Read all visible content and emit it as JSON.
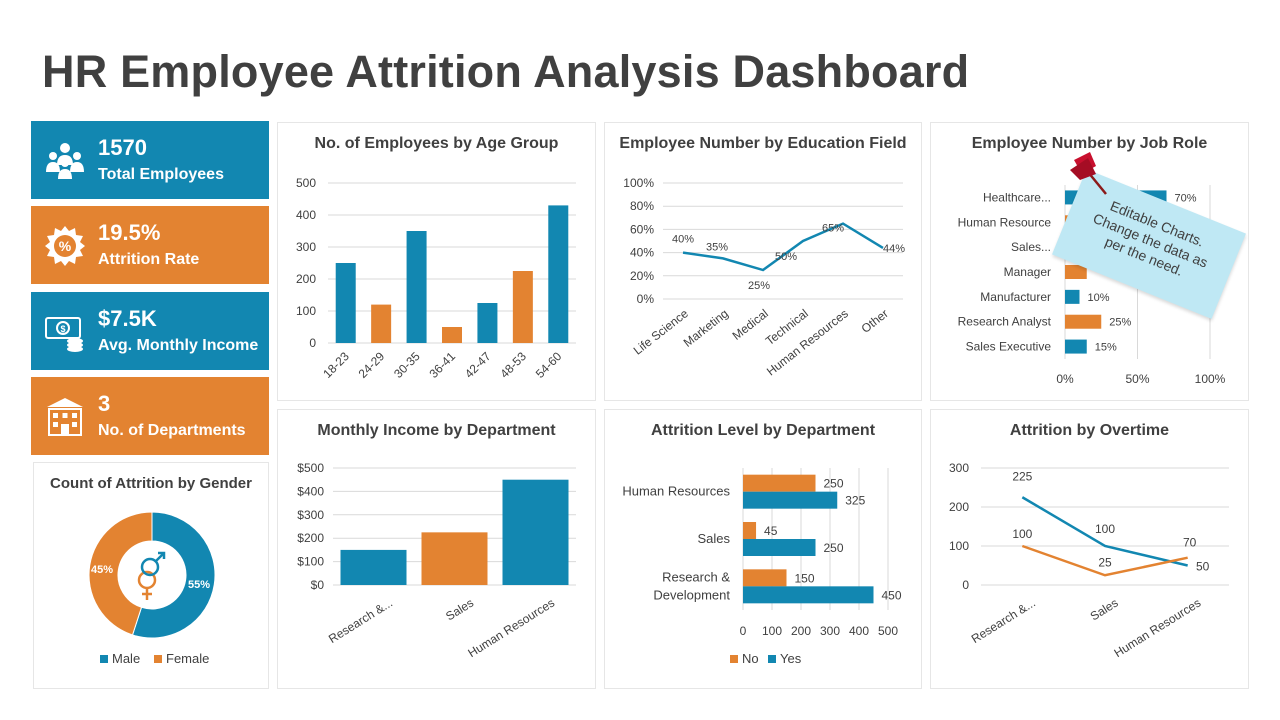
{
  "title": "HR Employee Attrition Analysis Dashboard",
  "colors": {
    "blue": "#1287b1",
    "orange": "#e38331",
    "text": "#404040",
    "grid": "#d9d9d9"
  },
  "kpis": [
    {
      "value": "1570",
      "label": "Total Employees",
      "icon": "people-icon"
    },
    {
      "value": "19.5%",
      "label": "Attrition Rate",
      "icon": "percent-badge-icon"
    },
    {
      "value": "$7.5K",
      "label": "Avg. Monthly Income",
      "icon": "money-icon"
    },
    {
      "value": "3",
      "label": "No. of Departments",
      "icon": "building-icon"
    }
  ],
  "note": {
    "line1": "Editable Charts.",
    "line2": "Change the data as",
    "line3": "per the need."
  },
  "chart_data": [
    {
      "id": "age",
      "type": "bar",
      "title": "No. of Employees by Age Group",
      "categories": [
        "18-23",
        "24-29",
        "30-35",
        "36-41",
        "42-47",
        "48-53",
        "54-60"
      ],
      "values": [
        250,
        120,
        350,
        50,
        125,
        225,
        430
      ],
      "colors": [
        "blue",
        "orange",
        "blue",
        "orange",
        "blue",
        "orange",
        "blue"
      ],
      "yticks": [
        "0",
        "100",
        "200",
        "300",
        "400",
        "500"
      ],
      "ylim": [
        0,
        500
      ]
    },
    {
      "id": "edu",
      "type": "line",
      "title": "Employee Number by Education Field",
      "categories": [
        "Life Science",
        "Marketing",
        "Medical",
        "Technical",
        "Human Resources",
        "Other"
      ],
      "values": [
        40,
        35,
        25,
        50,
        65,
        44
      ],
      "labels": [
        "40%",
        "35%",
        "25%",
        "50%",
        "65%",
        "44%"
      ],
      "yticks": [
        "0%",
        "20%",
        "40%",
        "60%",
        "80%",
        "100%"
      ],
      "ylim": [
        0,
        100
      ]
    },
    {
      "id": "job",
      "type": "bar",
      "orientation": "horizontal",
      "title": "Employee Number by Job Role",
      "categories": [
        "Healthcare...",
        "Human Resource",
        "Sales...",
        "Manager",
        "Manufacturer",
        "Research Analyst",
        "Sales Executive"
      ],
      "values": [
        70,
        20,
        10,
        15,
        10,
        25,
        15
      ],
      "labels": [
        "70%",
        "",
        "",
        "",
        "10%",
        "25%",
        "15%"
      ],
      "colors": [
        "blue",
        "orange",
        "blue",
        "orange",
        "blue",
        "orange",
        "blue"
      ],
      "xticks": [
        "0%",
        "50%",
        "100%"
      ],
      "xlim": [
        0,
        100
      ]
    },
    {
      "id": "gender",
      "type": "pie",
      "title": "Count of Attrition by Gender",
      "categories": [
        "Male",
        "Female"
      ],
      "values": [
        55,
        45
      ],
      "labels": [
        "55%",
        "45%"
      ],
      "legend": [
        "Male",
        "Female"
      ]
    },
    {
      "id": "income",
      "type": "bar",
      "title": "Monthly Income by Department",
      "categories": [
        "Research &...",
        "Sales",
        "Human Resources"
      ],
      "values": [
        150,
        225,
        450
      ],
      "colors": [
        "blue",
        "orange",
        "blue"
      ],
      "yticks": [
        "$0",
        "$100",
        "$200",
        "$300",
        "$400",
        "$500"
      ],
      "ylim": [
        0,
        500
      ]
    },
    {
      "id": "attrdept",
      "type": "bar",
      "orientation": "horizontal",
      "title": "Attrition Level by Department",
      "categories": [
        "Human Resources",
        "Sales",
        "Research &\nDevelopment"
      ],
      "series": [
        {
          "name": "No",
          "values": [
            250,
            45,
            150
          ]
        },
        {
          "name": "Yes",
          "values": [
            325,
            250,
            450
          ]
        }
      ],
      "xticks": [
        "0",
        "100",
        "200",
        "300",
        "400",
        "500"
      ],
      "xlim": [
        0,
        500
      ],
      "legend": [
        "No",
        "Yes"
      ]
    },
    {
      "id": "overtime",
      "type": "line",
      "title": "Attrition by Overtime",
      "categories": [
        "Research &...",
        "Sales",
        "Human Resources"
      ],
      "series": [
        {
          "name": "Yes",
          "values": [
            225,
            100,
            50
          ]
        },
        {
          "name": "No",
          "values": [
            100,
            25,
            70
          ]
        }
      ],
      "yticks": [
        "0",
        "100",
        "200",
        "300"
      ],
      "ylim": [
        0,
        300
      ]
    }
  ]
}
